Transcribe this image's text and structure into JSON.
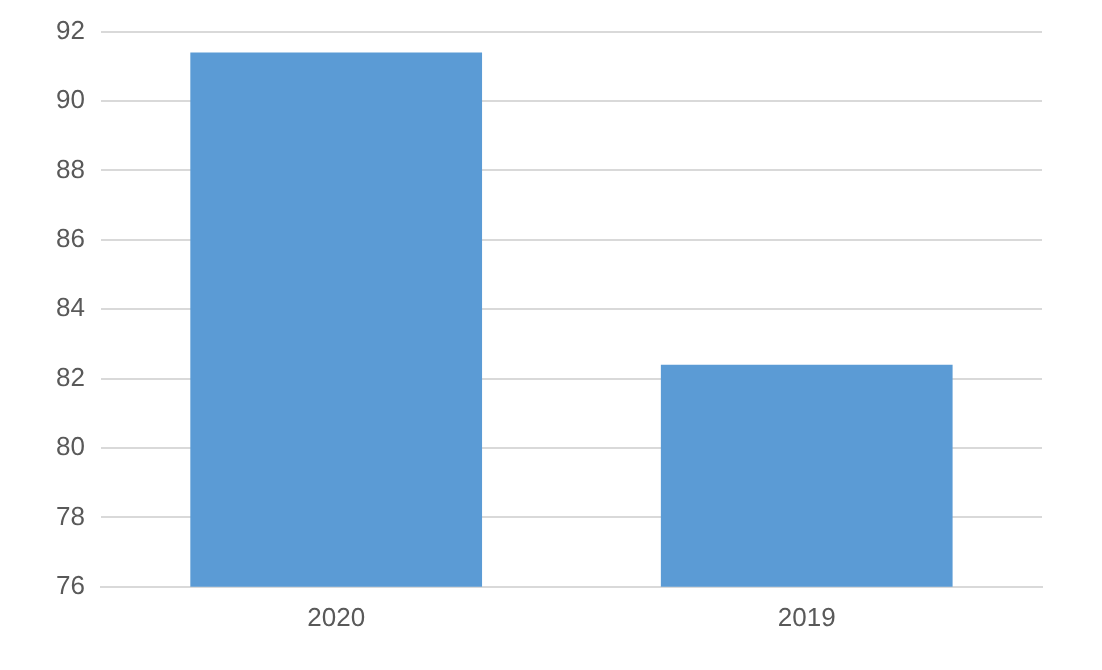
{
  "chart_data": {
    "type": "bar",
    "categories": [
      "2020",
      "2019"
    ],
    "values": [
      91.4,
      82.4
    ],
    "color": "#5b9bd5",
    "ylim": [
      76,
      92
    ],
    "yticks": [
      76,
      78,
      80,
      82,
      84,
      86,
      88,
      90,
      92
    ],
    "grid": "y",
    "legend": false
  }
}
